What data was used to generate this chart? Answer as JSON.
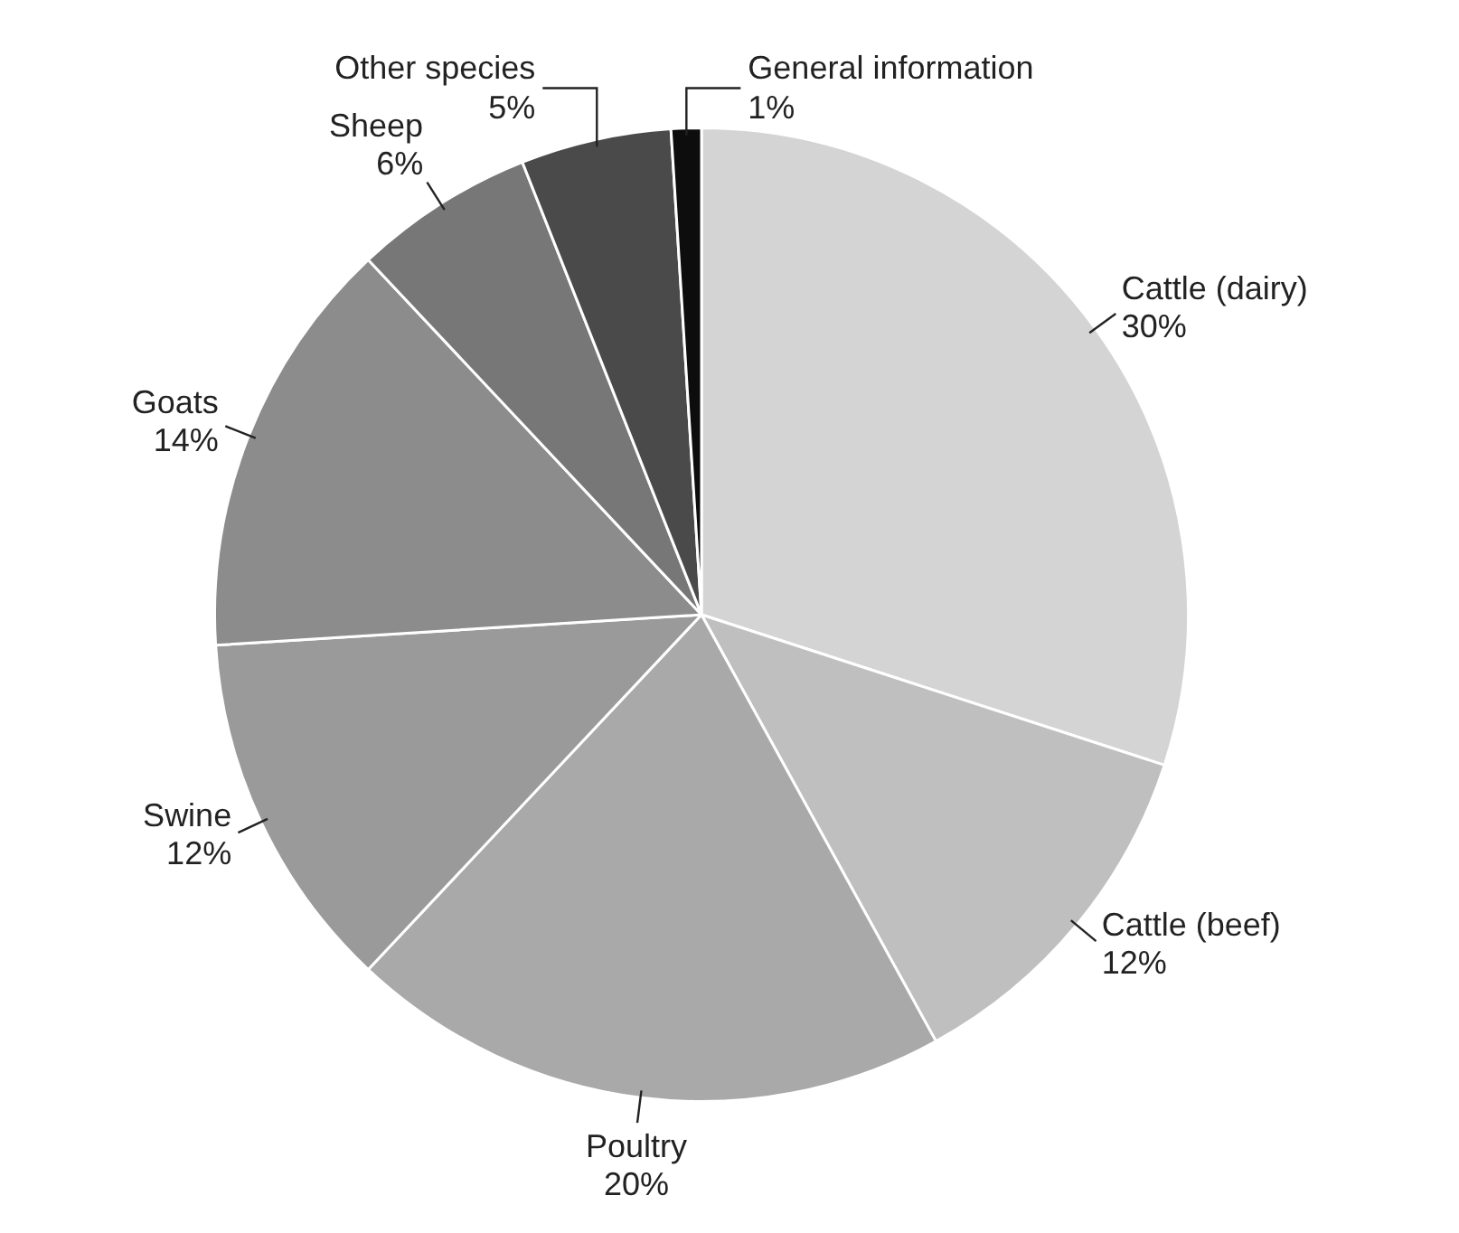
{
  "chart_data": {
    "type": "pie",
    "categories": [
      "Cattle (dairy)",
      "Cattle (beef)",
      "Poultry",
      "Swine",
      "Goats",
      "Sheep",
      "Other species",
      "General information"
    ],
    "values": [
      30,
      12,
      20,
      12,
      14,
      6,
      5,
      1
    ],
    "colors": [
      "#d4d4d4",
      "#bfbfbf",
      "#a9a9a9",
      "#9a9a9a",
      "#8c8c8c",
      "#777777",
      "#4a4a4a",
      "#0d0d0d"
    ],
    "value_labels": [
      "30%",
      "12%",
      "20%",
      "12%",
      "14%",
      "6%",
      "5%",
      "1%"
    ],
    "legend": false
  }
}
